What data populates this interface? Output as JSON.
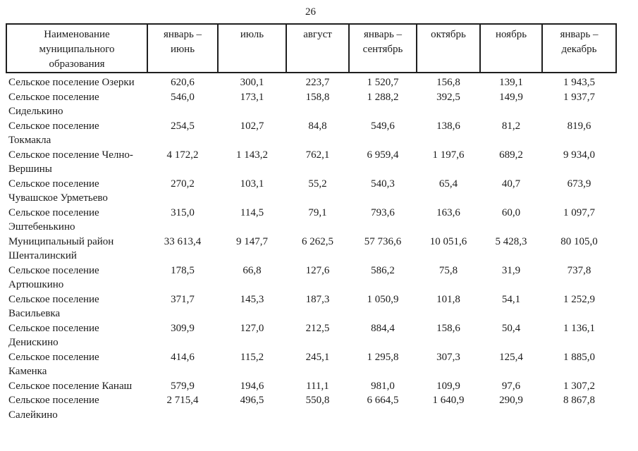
{
  "page": {
    "number": "26"
  },
  "colors": {
    "text": "#1b1b1b",
    "border": "#1f1f1f",
    "background": "#ffffff"
  },
  "table": {
    "header": {
      "name": "Наименование\nмуниципального\nобразования",
      "columns": [
        "январь –\nиюнь",
        "июль",
        "август",
        "январь –\nсентябрь",
        "октябрь",
        "ноябрь",
        "январь –\nдекабрь"
      ]
    },
    "rows": [
      {
        "name": "Сельское поселение Озерки",
        "values": [
          "620,6",
          "300,1",
          "223,7",
          "1 520,7",
          "156,8",
          "139,1",
          "1 943,5"
        ]
      },
      {
        "name": "Сельское поселение\nСиделькино",
        "values": [
          "546,0",
          "173,1",
          "158,8",
          "1 288,2",
          "392,5",
          "149,9",
          "1 937,7"
        ]
      },
      {
        "name": "Сельское поселение\nТокмакла",
        "values": [
          "254,5",
          "102,7",
          "84,8",
          "549,6",
          "138,6",
          "81,2",
          "819,6"
        ]
      },
      {
        "name": "Сельское поселение Челно-\nВершины",
        "values": [
          "4 172,2",
          "1 143,2",
          "762,1",
          "6 959,4",
          "1 197,6",
          "689,2",
          "9 934,0"
        ]
      },
      {
        "name": "Сельское поселение\nЧувашское Урметьево",
        "values": [
          "270,2",
          "103,1",
          "55,2",
          "540,3",
          "65,4",
          "40,7",
          "673,9"
        ]
      },
      {
        "name": "Сельское поселение\nЭштебенькино",
        "values": [
          "315,0",
          "114,5",
          "79,1",
          "793,6",
          "163,6",
          "60,0",
          "1 097,7"
        ]
      },
      {
        "name": "Муниципальный район\nШенталинский",
        "values": [
          "33 613,4",
          "9 147,7",
          "6 262,5",
          "57 736,6",
          "10 051,6",
          "5 428,3",
          "80 105,0"
        ]
      },
      {
        "name": "Сельское поселение\nАртюшкино",
        "values": [
          "178,5",
          "66,8",
          "127,6",
          "586,2",
          "75,8",
          "31,9",
          "737,8"
        ]
      },
      {
        "name": "Сельское поселение\nВасильевка",
        "values": [
          "371,7",
          "145,3",
          "187,3",
          "1 050,9",
          "101,8",
          "54,1",
          "1 252,9"
        ]
      },
      {
        "name": "Сельское поселение\nДенискино",
        "values": [
          "309,9",
          "127,0",
          "212,5",
          "884,4",
          "158,6",
          "50,4",
          "1 136,1"
        ]
      },
      {
        "name": "Сельское поселение\nКаменка",
        "values": [
          "414,6",
          "115,2",
          "245,1",
          "1 295,8",
          "307,3",
          "125,4",
          "1 885,0"
        ]
      },
      {
        "name": "Сельское поселение Канаш",
        "values": [
          "579,9",
          "194,6",
          "111,1",
          "981,0",
          "109,9",
          "97,6",
          "1 307,2"
        ]
      },
      {
        "name": "Сельское поселение\nСалейкино",
        "values": [
          "2 715,4",
          "496,5",
          "550,8",
          "6 664,5",
          "1 640,9",
          "290,9",
          "8 867,8"
        ]
      }
    ]
  }
}
